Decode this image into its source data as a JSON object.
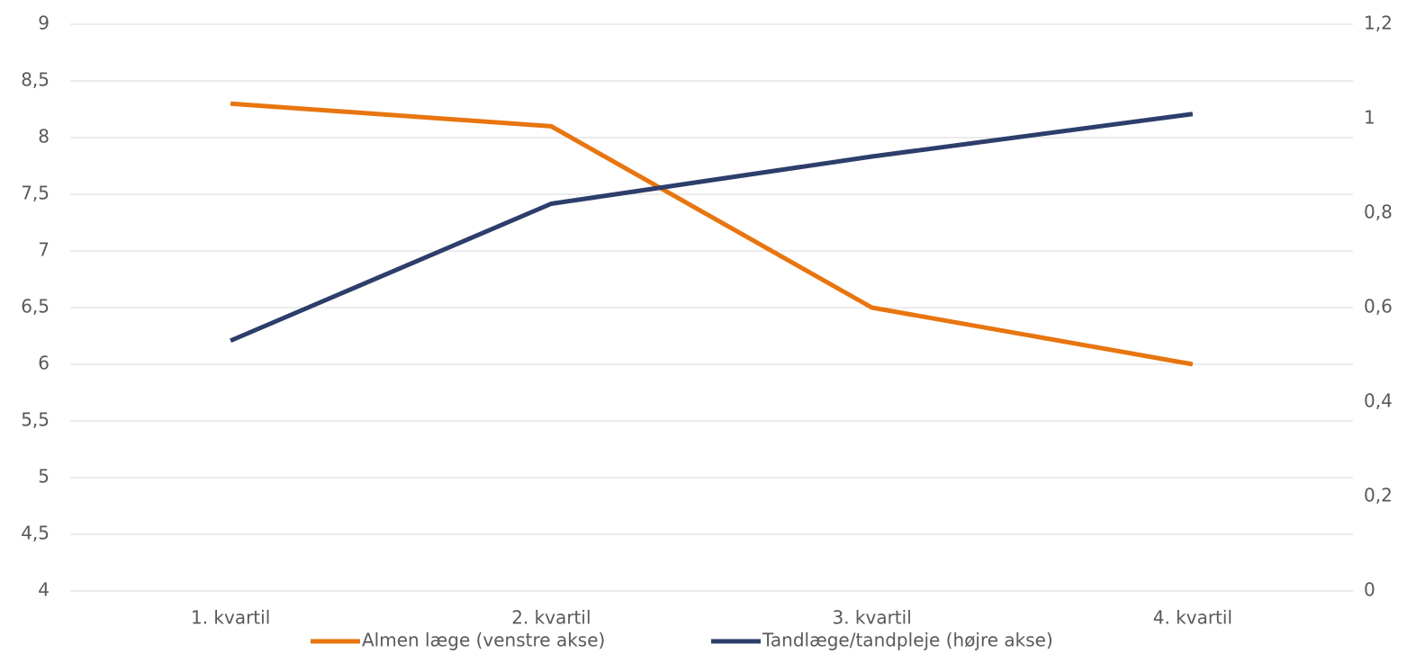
{
  "chart_data": {
    "type": "line",
    "categories": [
      "1. kvartil",
      "2. kvartil",
      "3. kvartil",
      "4. kvartil"
    ],
    "series": [
      {
        "name": "Almen læge (venstre akse)",
        "color": "#e8750f",
        "values": [
          8.3,
          8.1,
          6.5,
          6.0
        ]
      },
      {
        "name": "Tandlæge/tandpleje (højre akse)",
        "color": "#2d3e6b",
        "axis": "y2",
        "values": [
          0.53,
          0.82,
          0.92,
          1.01
        ]
      }
    ],
    "ylim": [
      4,
      9
    ],
    "yticks": [
      4,
      {
        "value": 4.5,
        "label": "4,5"
      },
      5,
      {
        "value": 5.5,
        "label": "5,5"
      },
      6,
      {
        "value": 6.5,
        "label": "6,5"
      },
      7,
      {
        "value": 7.5,
        "label": "7,5"
      },
      8,
      {
        "value": 8.5,
        "label": "8,5"
      },
      9
    ],
    "y2lim": [
      0,
      1.2
    ],
    "y2ticks": [
      0,
      {
        "value": 0.2,
        "label": "0,2"
      },
      {
        "value": 0.4,
        "label": "0,4"
      },
      {
        "value": 0.6,
        "label": "0,6"
      },
      {
        "value": 0.8,
        "label": "0,8"
      },
      1,
      {
        "value": 1.2,
        "label": "1,2"
      }
    ],
    "grid": true,
    "legend": "bottom"
  }
}
